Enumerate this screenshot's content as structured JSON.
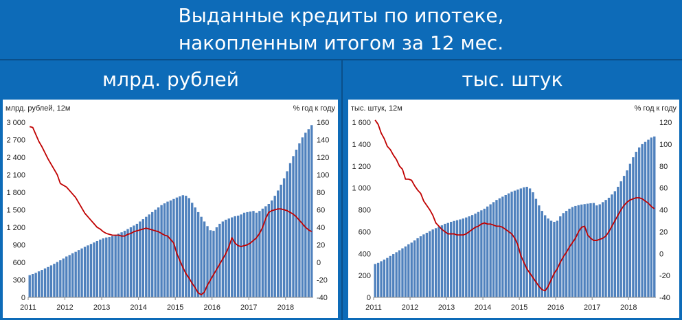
{
  "header": {
    "title_line1": "Выданные кредиты по ипотеке,",
    "title_line2": "накопленным итогом за 12 мес."
  },
  "panels": {
    "left_heading": "млрд. рублей",
    "right_heading": "тыс. штук"
  },
  "colors": {
    "background": "#0d6bb8",
    "bars": "#4f81bd",
    "line": "#c00000"
  },
  "chart_data": [
    {
      "type": "bar",
      "ylabel": "млрд. рублей, 12м",
      "y2label": "% год к году",
      "ylim": [
        0,
        3000
      ],
      "yticks": [
        "0",
        "300",
        "600",
        "900",
        "1 200",
        "1 500",
        "1 800",
        "2 100",
        "2 400",
        "2 700",
        "3 000"
      ],
      "y2lim": [
        -40,
        160
      ],
      "y2ticks": [
        "-40",
        "-20",
        "0",
        "20",
        "40",
        "60",
        "80",
        "100",
        "120",
        "140",
        "160"
      ],
      "xticks": [
        "2011",
        "2012",
        "2013",
        "2014",
        "2015",
        "2016",
        "2017",
        "2018"
      ],
      "x_start": "2011-01",
      "series": [
        {
          "type": "bar",
          "values": [
            380,
            400,
            420,
            445,
            470,
            495,
            520,
            548,
            575,
            605,
            635,
            665,
            700,
            725,
            755,
            780,
            810,
            838,
            865,
            890,
            915,
            940,
            965,
            990,
            1010,
            1025,
            1035,
            1050,
            1070,
            1090,
            1115,
            1140,
            1170,
            1200,
            1230,
            1260,
            1300,
            1340,
            1380,
            1420,
            1460,
            1500,
            1540,
            1580,
            1610,
            1640,
            1660,
            1685,
            1710,
            1730,
            1750,
            1740,
            1700,
            1620,
            1540,
            1460,
            1380,
            1300,
            1220,
            1150,
            1140,
            1200,
            1260,
            1300,
            1330,
            1350,
            1370,
            1390,
            1400,
            1420,
            1450,
            1460,
            1470,
            1480,
            1450,
            1480,
            1520,
            1560,
            1600,
            1660,
            1740,
            1830,
            1930,
            2040,
            2160,
            2300,
            2420,
            2530,
            2640,
            2740,
            2820,
            2880,
            2950
          ]
        },
        {
          "type": "line",
          "axis": "right",
          "values": [
            155,
            154,
            146,
            138,
            132,
            125,
            118,
            112,
            106,
            100,
            90,
            88,
            86,
            82,
            78,
            74,
            68,
            62,
            56,
            52,
            48,
            44,
            40,
            38,
            35,
            33,
            32,
            31,
            31,
            31,
            30,
            30,
            32,
            33,
            35,
            36,
            37,
            38,
            39,
            38,
            37,
            36,
            35,
            33,
            31,
            30,
            26,
            22,
            10,
            2,
            -6,
            -13,
            -18,
            -24,
            -29,
            -35,
            -37,
            -34,
            -26,
            -20,
            -14,
            -8,
            -2,
            4,
            10,
            18,
            28,
            22,
            19,
            18,
            19,
            20,
            22,
            25,
            28,
            33,
            40,
            50,
            57,
            59,
            60,
            61,
            61,
            60,
            59,
            57,
            55,
            52,
            48,
            44,
            40,
            37,
            35
          ]
        }
      ]
    },
    {
      "type": "bar",
      "ylabel": "тыс. штук, 12м",
      "y2label": "% год к году",
      "ylim": [
        0,
        1600
      ],
      "yticks": [
        "0",
        "200",
        "400",
        "600",
        "800",
        "1 000",
        "1 200",
        "1 400",
        "1 600"
      ],
      "y2lim": [
        -40,
        120
      ],
      "y2ticks": [
        "-40",
        "-20",
        "0",
        "20",
        "40",
        "60",
        "80",
        "100",
        "120"
      ],
      "xticks": [
        "2011",
        "2012",
        "2013",
        "2014",
        "2015",
        "2016",
        "2017",
        "2018"
      ],
      "x_start": "2011-01",
      "series": [
        {
          "type": "bar",
          "values": [
            305,
            315,
            330,
            345,
            360,
            378,
            395,
            412,
            430,
            448,
            465,
            485,
            500,
            520,
            540,
            558,
            575,
            590,
            605,
            620,
            632,
            645,
            658,
            672,
            680,
            690,
            698,
            705,
            712,
            720,
            730,
            740,
            752,
            765,
            780,
            795,
            810,
            830,
            850,
            870,
            890,
            905,
            920,
            935,
            950,
            965,
            975,
            985,
            995,
            1005,
            1010,
            995,
            960,
            900,
            840,
            790,
            750,
            720,
            700,
            690,
            700,
            740,
            770,
            790,
            810,
            825,
            835,
            842,
            848,
            852,
            856,
            860,
            862,
            840,
            850,
            870,
            890,
            910,
            940,
            970,
            1010,
            1060,
            1110,
            1160,
            1220,
            1280,
            1330,
            1370,
            1400,
            1420,
            1440,
            1460,
            1470
          ]
        },
        {
          "type": "line",
          "axis": "right",
          "values": [
            122,
            118,
            110,
            105,
            98,
            95,
            90,
            86,
            80,
            77,
            68,
            68,
            67,
            62,
            58,
            55,
            48,
            44,
            40,
            35,
            28,
            25,
            22,
            20,
            18,
            18,
            18,
            17,
            17,
            17,
            18,
            20,
            22,
            24,
            25,
            27,
            28,
            27,
            27,
            26,
            25,
            25,
            24,
            22,
            20,
            18,
            14,
            8,
            -2,
            -8,
            -14,
            -18,
            -22,
            -26,
            -30,
            -33,
            -34,
            -30,
            -24,
            -18,
            -14,
            -8,
            -3,
            1,
            6,
            10,
            14,
            20,
            24,
            25,
            17,
            14,
            12,
            12,
            13,
            14,
            16,
            20,
            25,
            30,
            35,
            40,
            44,
            47,
            49,
            50,
            51,
            51,
            50,
            48,
            46,
            43,
            41
          ]
        }
      ]
    }
  ]
}
